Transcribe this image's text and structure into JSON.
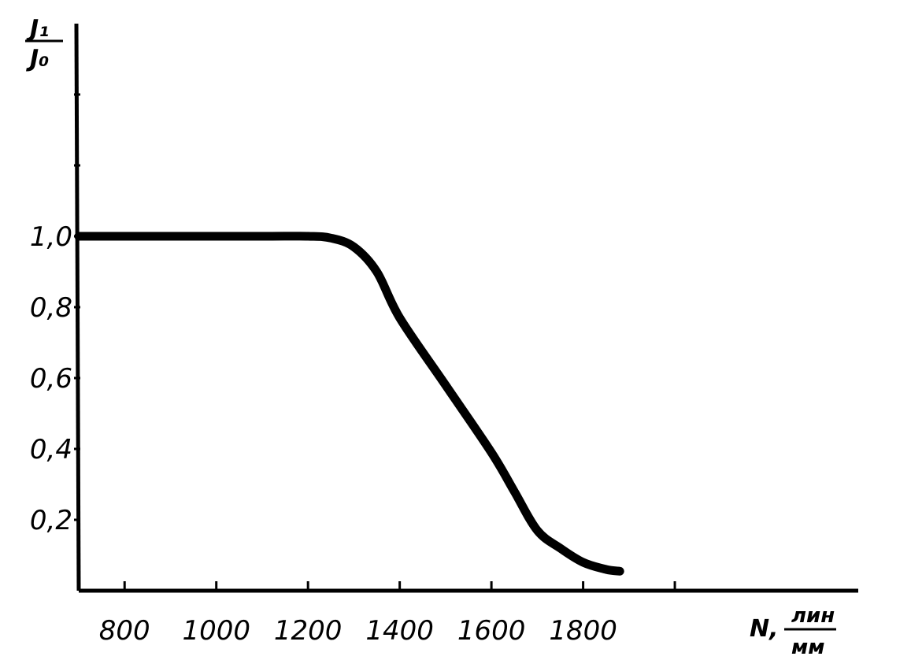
{
  "chart_data": {
    "type": "line",
    "xlabel_var": "N,",
    "xlabel_unit_top": "лин",
    "xlabel_unit_bottom": "мм",
    "ylabel_top": "J₁",
    "ylabel_bottom": "J₀",
    "xlim": [
      700,
      2400
    ],
    "ylim": [
      0,
      1.6
    ],
    "x_ticks": [
      800,
      1000,
      1200,
      1400,
      1600,
      1800,
      2000
    ],
    "x_tick_labels": [
      "800",
      "1000",
      "1200",
      "1400",
      "1600",
      "1800",
      ""
    ],
    "y_ticks": [
      0.2,
      0.4,
      0.6,
      0.8,
      1.0,
      1.2,
      1.4
    ],
    "y_tick_labels": [
      "0,2",
      "0,4",
      "0,6",
      "0,8",
      "1,0",
      "",
      ""
    ],
    "grid": false,
    "series": [
      {
        "x": [
          700,
          900,
          1100,
          1200,
          1250,
          1300,
          1350,
          1400,
          1500,
          1600,
          1650,
          1700,
          1750,
          1800,
          1850,
          1880
        ],
        "y": [
          1.0,
          1.0,
          1.0,
          1.0,
          0.995,
          0.97,
          0.9,
          0.77,
          0.58,
          0.39,
          0.28,
          0.17,
          0.12,
          0.08,
          0.06,
          0.055
        ]
      }
    ]
  }
}
